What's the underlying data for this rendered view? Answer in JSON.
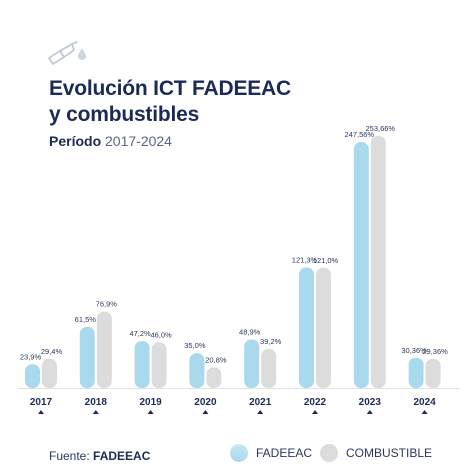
{
  "header": {
    "title_line1": "Evolución ICT FADEEAC",
    "title_line2": "y combustibles",
    "period_label": "Período",
    "period_value": "2017-2024"
  },
  "footer": {
    "source_label": "Fuente:",
    "source_value": "FADEEAC"
  },
  "icon": "fuel-pump-icon",
  "colors": {
    "fadeeac": "#a9d9ec",
    "combustible": "#dcdcdc",
    "text": "#1c2a57"
  },
  "chart_data": {
    "type": "bar",
    "categories": [
      "2017",
      "2018",
      "2019",
      "2020",
      "2021",
      "2022",
      "2023",
      "2024"
    ],
    "series": [
      {
        "name": "FADEEAC",
        "values": [
          23.9,
          61.5,
          47.2,
          35.0,
          48.9,
          121.3,
          247.56,
          30.36
        ],
        "labels": [
          "23,9%",
          "61,5%",
          "47,2%",
          "35,0%",
          "48,9%",
          "121,3%",
          "247,56%",
          "30,36%"
        ]
      },
      {
        "name": "COMBUSTIBLE",
        "values": [
          29.4,
          76.9,
          46.0,
          20.8,
          39.2,
          121.0,
          253.66,
          29.36
        ],
        "labels": [
          "29,4%",
          "76,9%",
          "46,0%",
          "20,8%",
          "39,2%",
          "121,0%",
          "253,66%",
          "29,36%"
        ]
      }
    ],
    "ylim": [
      0,
      253.66
    ],
    "grid": false,
    "legend": "bottom-right"
  }
}
